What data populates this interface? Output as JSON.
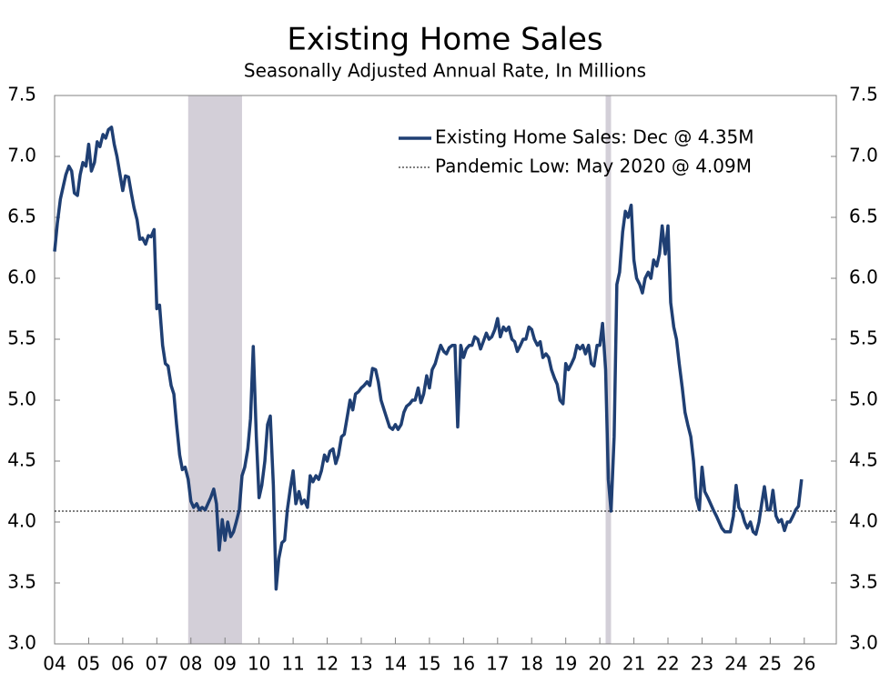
{
  "chart_data": {
    "type": "line",
    "title": "Existing Home Sales",
    "subtitle": "Seasonally Adjusted Annual Rate, In Millions",
    "x": [
      2004,
      2004.08,
      2004.17,
      2004.25,
      2004.33,
      2004.42,
      2004.5,
      2004.58,
      2004.67,
      2004.75,
      2004.83,
      2004.92,
      2005,
      2005.08,
      2005.17,
      2005.25,
      2005.33,
      2005.42,
      2005.5,
      2005.58,
      2005.67,
      2005.75,
      2005.83,
      2005.92,
      2006,
      2006.08,
      2006.17,
      2006.25,
      2006.33,
      2006.42,
      2006.5,
      2006.58,
      2006.67,
      2006.75,
      2006.83,
      2006.92,
      2007,
      2007.08,
      2007.17,
      2007.25,
      2007.33,
      2007.42,
      2007.5,
      2007.58,
      2007.67,
      2007.75,
      2007.83,
      2007.92,
      2008,
      2008.08,
      2008.17,
      2008.25,
      2008.33,
      2008.42,
      2008.5,
      2008.58,
      2008.67,
      2008.75,
      2008.83,
      2008.92,
      2009,
      2009.08,
      2009.17,
      2009.25,
      2009.33,
      2009.42,
      2009.5,
      2009.58,
      2009.67,
      2009.75,
      2009.83,
      2009.92,
      2010,
      2010.08,
      2010.17,
      2010.25,
      2010.33,
      2010.42,
      2010.5,
      2010.58,
      2010.67,
      2010.75,
      2010.83,
      2010.92,
      2011,
      2011.08,
      2011.17,
      2011.25,
      2011.33,
      2011.42,
      2011.5,
      2011.58,
      2011.67,
      2011.75,
      2011.83,
      2011.92,
      2012,
      2012.08,
      2012.17,
      2012.25,
      2012.33,
      2012.42,
      2012.5,
      2012.58,
      2012.67,
      2012.75,
      2012.83,
      2012.92,
      2013,
      2013.08,
      2013.17,
      2013.25,
      2013.33,
      2013.42,
      2013.5,
      2013.58,
      2013.67,
      2013.75,
      2013.83,
      2013.92,
      2014,
      2014.08,
      2014.17,
      2014.25,
      2014.33,
      2014.42,
      2014.5,
      2014.58,
      2014.67,
      2014.75,
      2014.83,
      2014.92,
      2015,
      2015.08,
      2015.17,
      2015.25,
      2015.33,
      2015.42,
      2015.5,
      2015.58,
      2015.67,
      2015.75,
      2015.83,
      2015.92,
      2016,
      2016.08,
      2016.17,
      2016.25,
      2016.33,
      2016.42,
      2016.5,
      2016.58,
      2016.67,
      2016.75,
      2016.83,
      2016.92,
      2017,
      2017.08,
      2017.17,
      2017.25,
      2017.33,
      2017.42,
      2017.5,
      2017.58,
      2017.67,
      2017.75,
      2017.83,
      2017.92,
      2018,
      2018.08,
      2018.17,
      2018.25,
      2018.33,
      2018.42,
      2018.5,
      2018.58,
      2018.67,
      2018.75,
      2018.83,
      2018.92,
      2019,
      2019.08,
      2019.17,
      2019.25,
      2019.33,
      2019.42,
      2019.5,
      2019.58,
      2019.67,
      2019.75,
      2019.83,
      2019.92,
      2020,
      2020.08,
      2020.17,
      2020.25,
      2020.33,
      2020.42,
      2020.5,
      2020.58,
      2020.67,
      2020.75,
      2020.83,
      2020.92,
      2021,
      2021.08,
      2021.17,
      2021.25,
      2021.33,
      2021.42,
      2021.5,
      2021.58,
      2021.67,
      2021.75,
      2021.83,
      2021.92,
      2022,
      2022.08,
      2022.17,
      2022.25,
      2022.33,
      2022.42,
      2022.5,
      2022.58,
      2022.67,
      2022.75,
      2022.83,
      2022.92,
      2023,
      2023.08,
      2023.17,
      2023.25,
      2023.33,
      2023.42,
      2023.5,
      2023.58,
      2023.67,
      2023.75,
      2023.83,
      2023.92,
      2024,
      2024.08,
      2024.17,
      2024.25,
      2024.33,
      2024.42,
      2024.5,
      2024.58,
      2024.67,
      2024.75,
      2024.83,
      2024.92,
      2025,
      2025.08,
      2025.17,
      2025.25,
      2025.33,
      2025.42,
      2025.5,
      2025.58,
      2025.67,
      2025.75,
      2025.83,
      2025.92
    ],
    "series": [
      {
        "name": "Existing Home Sales: Dec @ 4.35M",
        "color": "#1f3f73",
        "values": [
          6.22,
          6.45,
          6.65,
          6.75,
          6.85,
          6.92,
          6.88,
          6.7,
          6.68,
          6.85,
          6.95,
          6.92,
          7.1,
          6.88,
          6.95,
          7.12,
          7.08,
          7.18,
          7.15,
          7.22,
          7.24,
          7.1,
          7.0,
          6.85,
          6.72,
          6.84,
          6.83,
          6.7,
          6.58,
          6.48,
          6.32,
          6.33,
          6.28,
          6.35,
          6.34,
          6.4,
          5.75,
          5.78,
          5.45,
          5.3,
          5.28,
          5.12,
          5.05,
          4.8,
          4.55,
          4.43,
          4.45,
          4.35,
          4.17,
          4.12,
          4.15,
          4.1,
          4.12,
          4.1,
          4.15,
          4.2,
          4.27,
          4.15,
          3.77,
          4.02,
          3.85,
          4.0,
          3.88,
          3.92,
          4.0,
          4.1,
          4.38,
          4.45,
          4.6,
          4.85,
          5.44,
          4.7,
          4.2,
          4.3,
          4.5,
          4.8,
          4.87,
          4.3,
          3.45,
          3.7,
          3.83,
          3.85,
          4.1,
          4.28,
          4.42,
          4.15,
          4.25,
          4.15,
          4.18,
          4.12,
          4.38,
          4.33,
          4.38,
          4.35,
          4.42,
          4.55,
          4.5,
          4.58,
          4.6,
          4.48,
          4.55,
          4.7,
          4.72,
          4.85,
          5.0,
          4.92,
          5.05,
          5.07,
          5.1,
          5.12,
          5.15,
          5.12,
          5.26,
          5.25,
          5.15,
          5.0,
          4.92,
          4.85,
          4.78,
          4.76,
          4.8,
          4.76,
          4.8,
          4.9,
          4.95,
          4.97,
          5.0,
          5.0,
          5.1,
          4.98,
          5.05,
          5.2,
          5.1,
          5.25,
          5.3,
          5.38,
          5.45,
          5.4,
          5.38,
          5.43,
          5.45,
          5.45,
          4.78,
          5.45,
          5.35,
          5.42,
          5.45,
          5.45,
          5.52,
          5.5,
          5.42,
          5.48,
          5.55,
          5.5,
          5.52,
          5.58,
          5.67,
          5.52,
          5.6,
          5.57,
          5.6,
          5.5,
          5.48,
          5.4,
          5.45,
          5.5,
          5.5,
          5.6,
          5.58,
          5.5,
          5.45,
          5.48,
          5.35,
          5.38,
          5.35,
          5.25,
          5.18,
          5.13,
          5.0,
          4.97,
          5.3,
          5.25,
          5.3,
          5.35,
          5.45,
          5.42,
          5.45,
          5.38,
          5.45,
          5.3,
          5.28,
          5.45,
          5.45,
          5.63,
          5.25,
          4.35,
          4.09,
          4.7,
          5.95,
          6.05,
          6.38,
          6.55,
          6.5,
          6.6,
          6.15,
          6.0,
          5.95,
          5.88,
          6.0,
          6.05,
          6.0,
          6.15,
          6.1,
          6.2,
          6.43,
          6.2,
          6.43,
          5.8,
          5.6,
          5.5,
          5.3,
          5.1,
          4.9,
          4.8,
          4.7,
          4.5,
          4.2,
          4.1,
          4.45,
          4.25,
          4.2,
          4.15,
          4.1,
          4.05,
          4.0,
          3.95,
          3.92,
          3.92,
          3.92,
          4.05,
          4.3,
          4.12,
          4.08,
          4.0,
          3.95,
          4.0,
          3.92,
          3.9,
          4.0,
          4.15,
          4.29,
          4.1,
          4.1,
          4.26,
          4.05,
          4.0,
          4.02,
          3.93,
          4.0,
          4.0,
          4.05,
          4.1,
          4.13,
          4.35
        ]
      }
    ],
    "reference_lines": [
      {
        "name": "Pandemic Low: May 2020 @ 4.09M",
        "value": 4.09,
        "color": "#000000"
      }
    ],
    "shaded_ranges": [
      {
        "start": 2007.92,
        "end": 2009.5,
        "color": "#d3cfd8"
      },
      {
        "start": 2020.17,
        "end": 2020.33,
        "color": "#d3cfd8"
      }
    ],
    "xlim": [
      2004,
      2026.94
    ],
    "xticks": [
      {
        "value": 2004,
        "label": "04"
      },
      {
        "value": 2005,
        "label": "05"
      },
      {
        "value": 2006,
        "label": "06"
      },
      {
        "value": 2007,
        "label": "07"
      },
      {
        "value": 2008,
        "label": "08"
      },
      {
        "value": 2009,
        "label": "09"
      },
      {
        "value": 2010,
        "label": "10"
      },
      {
        "value": 2011,
        "label": "11"
      },
      {
        "value": 2012,
        "label": "12"
      },
      {
        "value": 2013,
        "label": "13"
      },
      {
        "value": 2014,
        "label": "14"
      },
      {
        "value": 2015,
        "label": "15"
      },
      {
        "value": 2016,
        "label": "16"
      },
      {
        "value": 2017,
        "label": "17"
      },
      {
        "value": 2018,
        "label": "18"
      },
      {
        "value": 2019,
        "label": "19"
      },
      {
        "value": 2020,
        "label": "20"
      },
      {
        "value": 2021,
        "label": "21"
      },
      {
        "value": 2022,
        "label": "22"
      },
      {
        "value": 2023,
        "label": "23"
      },
      {
        "value": 2024,
        "label": "24"
      },
      {
        "value": 2025,
        "label": "25"
      },
      {
        "value": 2026,
        "label": "26"
      }
    ],
    "ylim": [
      3.0,
      7.5
    ],
    "yticks": [
      {
        "value": 3.0,
        "label": "3.0"
      },
      3.5,
      {
        "value": 4.0,
        "label": "4.0"
      },
      4.5,
      {
        "value": 5.0,
        "label": "5.0"
      },
      5.5,
      {
        "value": 6.0,
        "label": "6.0"
      },
      6.5,
      {
        "value": 7.0,
        "label": "7.0"
      },
      7.5
    ],
    "y2lim": [
      3.0,
      7.5
    ],
    "y2ticks": [
      {
        "value": 3.0,
        "label": "3.0"
      },
      3.5,
      {
        "value": 4.0,
        "label": "4.0"
      },
      4.5,
      {
        "value": 5.0,
        "label": "5.0"
      },
      5.5,
      {
        "value": 6.0,
        "label": "6.0"
      },
      6.5,
      {
        "value": 7.0,
        "label": "7.0"
      },
      7.5
    ],
    "grid": false,
    "legend": "upper right"
  }
}
